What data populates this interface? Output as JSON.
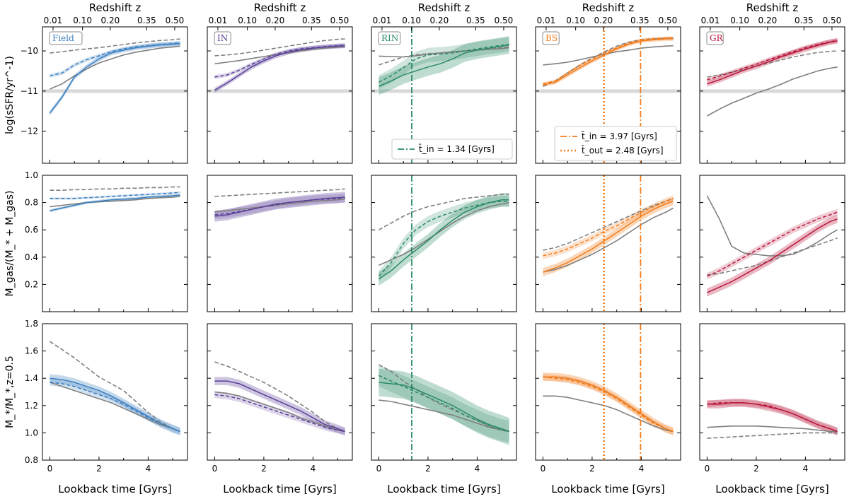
{
  "chart_data": {
    "type": "line",
    "figure_title": "",
    "redshift_axis_label": "Redshift z",
    "redshift_ticks": [
      "0.01",
      "0.10",
      "0.20",
      "0.35",
      "0.50"
    ],
    "redshift_tick_times": [
      0.13,
      1.33,
      2.46,
      3.94,
      5.08
    ],
    "xlabel": "Lookback time [Gyrs]",
    "xlim": [
      -0.3,
      5.6
    ],
    "xticks": [
      0,
      2,
      4
    ],
    "xtick_labels": [
      "0",
      "2",
      "4"
    ],
    "rows": [
      {
        "key": "ssfr",
        "ylabel": "log(sSFR/yr^-1)",
        "ylim": [
          -12.8,
          -9.4
        ],
        "yticks": [
          -12,
          -11,
          -10
        ],
        "ytick_labels": [
          "−12",
          "−11",
          "−10"
        ],
        "hline": -11
      },
      {
        "key": "mgas",
        "ylabel": "M_gas/(M_* + M_gas)",
        "ylim": [
          0.0,
          1.0
        ],
        "yticks": [
          0.2,
          0.4,
          0.6,
          0.8,
          1.0
        ],
        "ytick_labels": [
          "0.2",
          "0.4",
          "0.6",
          "0.8",
          "1.0"
        ]
      },
      {
        "key": "mstar",
        "ylabel": "M_*/M_*,z=0.5",
        "ylim": [
          0.8,
          1.8
        ],
        "yticks": [
          0.8,
          1.0,
          1.2,
          1.4,
          1.6,
          1.8
        ],
        "ytick_labels": [
          "0.8",
          "1.0",
          "1.2",
          "1.4",
          "1.6",
          "1.8"
        ]
      }
    ],
    "x": [
      0,
      0.5,
      1,
      1.5,
      2,
      2.5,
      3,
      3.5,
      4,
      4.5,
      5,
      5.3
    ],
    "panels": [
      {
        "name": "Field",
        "color": "#3a7fc0",
        "ssfr": {
          "solid": [
            -11.55,
            -11.15,
            -10.65,
            -10.4,
            -10.2,
            -10.05,
            -9.98,
            -9.92,
            -9.88,
            -9.85,
            -9.83,
            -9.82
          ],
          "dashed": [
            -10.62,
            -10.55,
            -10.35,
            -10.22,
            -10.12,
            -10.02,
            -9.95,
            -9.9,
            -9.87,
            -9.84,
            -9.82,
            -9.8
          ],
          "gray_solid": [
            -10.95,
            -10.82,
            -10.62,
            -10.45,
            -10.3,
            -10.2,
            -10.1,
            -10.03,
            -9.98,
            -9.93,
            -9.9,
            -9.88
          ],
          "gray_dashed": [
            -10.05,
            -10.02,
            -9.98,
            -9.95,
            -9.92,
            -9.88,
            -9.84,
            -9.8,
            -9.77,
            -9.74,
            -9.72,
            -9.7
          ],
          "band": 0.06
        },
        "mgas": {
          "solid": [
            0.74,
            0.76,
            0.78,
            0.8,
            0.81,
            0.82,
            0.825,
            0.83,
            0.84,
            0.845,
            0.85,
            0.855
          ],
          "dashed": [
            0.83,
            0.83,
            0.83,
            0.835,
            0.84,
            0.845,
            0.85,
            0.855,
            0.86,
            0.865,
            0.87,
            0.875
          ],
          "gray_solid": [
            0.77,
            0.78,
            0.79,
            0.8,
            0.805,
            0.81,
            0.815,
            0.82,
            0.83,
            0.835,
            0.84,
            0.845
          ],
          "gray_dashed": [
            0.89,
            0.89,
            0.895,
            0.895,
            0.9,
            0.9,
            0.905,
            0.905,
            0.91,
            0.91,
            0.915,
            0.915
          ],
          "band": 0.01
        },
        "mstar": {
          "solid": [
            1.4,
            1.39,
            1.37,
            1.34,
            1.31,
            1.27,
            1.22,
            1.17,
            1.12,
            1.07,
            1.03,
            1.01
          ],
          "dashed": [
            1.37,
            1.36,
            1.34,
            1.31,
            1.28,
            1.25,
            1.21,
            1.16,
            1.11,
            1.07,
            1.03,
            1.01
          ],
          "gray_solid": [
            1.37,
            1.34,
            1.31,
            1.28,
            1.25,
            1.22,
            1.18,
            1.14,
            1.1,
            1.06,
            1.03,
            1.01
          ],
          "gray_dashed": [
            1.67,
            1.61,
            1.55,
            1.48,
            1.41,
            1.36,
            1.31,
            1.23,
            1.15,
            1.08,
            1.03,
            1.01
          ],
          "band": 0.03
        }
      },
      {
        "name": "IN",
        "color": "#5a3f98",
        "ssfr": {
          "solid": [
            -10.98,
            -10.8,
            -10.6,
            -10.4,
            -10.25,
            -10.12,
            -10.03,
            -9.97,
            -9.93,
            -9.9,
            -9.88,
            -9.87
          ],
          "dashed": [
            -10.65,
            -10.6,
            -10.48,
            -10.33,
            -10.2,
            -10.08,
            -10.0,
            -9.95,
            -9.92,
            -9.89,
            -9.87,
            -9.86
          ],
          "gray_solid": [
            -10.32,
            -10.28,
            -10.24,
            -10.19,
            -10.14,
            -10.09,
            -10.05,
            -10.0,
            -9.96,
            -9.93,
            -9.91,
            -9.9
          ],
          "gray_dashed": [
            -10.12,
            -10.1,
            -10.07,
            -10.03,
            -9.98,
            -9.93,
            -9.88,
            -9.83,
            -9.78,
            -9.74,
            -9.71,
            -9.7
          ],
          "band": 0.06
        },
        "mgas": {
          "solid": [
            0.7,
            0.71,
            0.73,
            0.75,
            0.77,
            0.79,
            0.8,
            0.81,
            0.82,
            0.83,
            0.835,
            0.84
          ],
          "dashed": [
            0.71,
            0.72,
            0.735,
            0.75,
            0.77,
            0.785,
            0.8,
            0.81,
            0.82,
            0.825,
            0.83,
            0.835
          ],
          "gray_solid": [
            0.73,
            0.74,
            0.75,
            0.76,
            0.77,
            0.78,
            0.79,
            0.8,
            0.81,
            0.815,
            0.82,
            0.825
          ],
          "gray_dashed": [
            0.845,
            0.85,
            0.855,
            0.86,
            0.865,
            0.87,
            0.875,
            0.88,
            0.885,
            0.89,
            0.895,
            0.9
          ],
          "band": 0.04
        },
        "mstar": {
          "solid": [
            1.38,
            1.38,
            1.36,
            1.32,
            1.28,
            1.24,
            1.2,
            1.16,
            1.11,
            1.06,
            1.03,
            1.01
          ],
          "dashed": [
            1.28,
            1.27,
            1.25,
            1.22,
            1.19,
            1.16,
            1.13,
            1.1,
            1.07,
            1.04,
            1.02,
            1.01
          ],
          "gray_solid": [
            1.3,
            1.29,
            1.27,
            1.24,
            1.21,
            1.18,
            1.15,
            1.11,
            1.08,
            1.05,
            1.02,
            1.01
          ],
          "gray_dashed": [
            1.52,
            1.49,
            1.45,
            1.41,
            1.37,
            1.32,
            1.27,
            1.21,
            1.15,
            1.08,
            1.03,
            1.01
          ],
          "band": 0.03
        }
      },
      {
        "name": "RIN",
        "color": "#2a8a64",
        "ssfr": {
          "solid": [
            -10.88,
            -10.75,
            -10.6,
            -10.5,
            -10.4,
            -10.32,
            -10.2,
            -10.05,
            -9.98,
            -9.93,
            -9.88,
            -9.85
          ],
          "dashed": [
            -10.78,
            -10.62,
            -10.42,
            -10.2,
            -10.1,
            -10.08,
            -10.05,
            -10.0,
            -9.95,
            -9.9,
            -9.86,
            -9.83
          ],
          "gray_solid": [
            -10.13,
            -10.14,
            -10.15,
            -10.12,
            -10.08,
            -10.05,
            -10.02,
            -10.0,
            -9.98,
            -9.96,
            -9.94,
            -9.92
          ],
          "gray_dashed": [
            -10.35,
            -10.25,
            -10.15,
            -10.1,
            -10.07,
            -10.05,
            -10.03,
            -10.0,
            -9.98,
            -9.95,
            -9.92,
            -9.9
          ],
          "band": 0.22
        },
        "mgas": {
          "solid": [
            0.24,
            0.3,
            0.38,
            0.45,
            0.52,
            0.6,
            0.67,
            0.73,
            0.77,
            0.8,
            0.82,
            0.82
          ],
          "dashed": [
            0.26,
            0.36,
            0.5,
            0.6,
            0.66,
            0.7,
            0.73,
            0.76,
            0.78,
            0.8,
            0.81,
            0.81
          ],
          "gray_solid": [
            0.34,
            0.38,
            0.42,
            0.47,
            0.53,
            0.59,
            0.65,
            0.7,
            0.74,
            0.77,
            0.79,
            0.8
          ],
          "gray_dashed": [
            0.6,
            0.65,
            0.7,
            0.74,
            0.77,
            0.79,
            0.81,
            0.83,
            0.84,
            0.85,
            0.86,
            0.86
          ],
          "band": 0.05
        },
        "mstar": {
          "solid": [
            1.37,
            1.36,
            1.35,
            1.32,
            1.28,
            1.24,
            1.2,
            1.15,
            1.1,
            1.06,
            1.03,
            1.01
          ],
          "dashed": [
            1.42,
            1.38,
            1.34,
            1.3,
            1.26,
            1.22,
            1.18,
            1.13,
            1.09,
            1.05,
            1.02,
            1.01
          ],
          "gray_solid": [
            1.24,
            1.23,
            1.21,
            1.19,
            1.17,
            1.15,
            1.13,
            1.1,
            1.07,
            1.04,
            1.02,
            1.01
          ],
          "gray_dashed": [
            1.5,
            1.45,
            1.38,
            1.32,
            1.26,
            1.21,
            1.17,
            1.13,
            1.09,
            1.05,
            1.02,
            1.01
          ],
          "band": 0.1
        },
        "vlines": [
          {
            "x": 1.34,
            "style": "dashdot"
          }
        ],
        "legend": [
          "t̄_in = 1.34 [Gyrs]"
        ]
      },
      {
        "name": "BS",
        "color": "#f37c1a",
        "ssfr": {
          "solid": [
            -10.85,
            -10.78,
            -10.6,
            -10.42,
            -10.25,
            -10.1,
            -9.95,
            -9.83,
            -9.75,
            -9.72,
            -9.7,
            -9.7
          ],
          "dashed": [
            -10.82,
            -10.75,
            -10.55,
            -10.36,
            -10.2,
            -10.05,
            -9.92,
            -9.8,
            -9.73,
            -9.7,
            -9.68,
            -9.67
          ],
          "gray_solid": [
            -10.35,
            -10.32,
            -10.28,
            -10.22,
            -10.15,
            -10.08,
            -10.02,
            -9.98,
            -9.93,
            -9.9,
            -9.88,
            -9.87
          ],
          "gray_dashed": [
            -10.88,
            -10.75,
            -10.55,
            -10.35,
            -10.18,
            -10.02,
            -9.88,
            -9.78,
            -9.72,
            -9.7,
            -9.69,
            -9.68
          ],
          "band": 0.05
        },
        "mgas": {
          "solid": [
            0.29,
            0.32,
            0.36,
            0.41,
            0.46,
            0.52,
            0.58,
            0.64,
            0.7,
            0.75,
            0.79,
            0.81
          ],
          "dashed": [
            0.41,
            0.43,
            0.46,
            0.5,
            0.54,
            0.59,
            0.63,
            0.68,
            0.73,
            0.77,
            0.81,
            0.83
          ],
          "gray_solid": [
            0.29,
            0.31,
            0.34,
            0.38,
            0.42,
            0.47,
            0.52,
            0.58,
            0.64,
            0.69,
            0.73,
            0.76
          ],
          "gray_dashed": [
            0.45,
            0.47,
            0.5,
            0.54,
            0.58,
            0.62,
            0.66,
            0.7,
            0.74,
            0.78,
            0.81,
            0.83
          ],
          "band": 0.03
        },
        "mstar": {
          "solid": [
            1.41,
            1.41,
            1.4,
            1.38,
            1.35,
            1.31,
            1.26,
            1.2,
            1.14,
            1.08,
            1.03,
            1.01
          ],
          "dashed": [
            1.41,
            1.4,
            1.39,
            1.37,
            1.34,
            1.3,
            1.25,
            1.19,
            1.13,
            1.07,
            1.03,
            1.01
          ],
          "gray_solid": [
            1.27,
            1.27,
            1.26,
            1.24,
            1.22,
            1.2,
            1.17,
            1.13,
            1.09,
            1.05,
            1.02,
            1.01
          ],
          "gray_dashed": [
            1.41,
            1.41,
            1.4,
            1.38,
            1.35,
            1.31,
            1.26,
            1.2,
            1.14,
            1.08,
            1.03,
            1.01
          ],
          "band": 0.03
        },
        "vlines": [
          {
            "x": 3.97,
            "style": "dashdot"
          },
          {
            "x": 2.48,
            "style": "dotted"
          }
        ],
        "legend": [
          "t̄_in = 3.97 [Gyrs]",
          "t̄_out = 2.48 [Gyrs]"
        ]
      },
      {
        "name": "GR",
        "color": "#b8163a",
        "ssfr": {
          "solid": [
            -10.82,
            -10.72,
            -10.6,
            -10.48,
            -10.38,
            -10.27,
            -10.15,
            -10.05,
            -9.95,
            -9.86,
            -9.78,
            -9.75
          ],
          "dashed": [
            -10.72,
            -10.63,
            -10.53,
            -10.43,
            -10.33,
            -10.22,
            -10.12,
            -10.02,
            -9.92,
            -9.84,
            -9.77,
            -9.74
          ],
          "gray_solid": [
            -11.62,
            -11.45,
            -11.3,
            -11.18,
            -11.05,
            -10.95,
            -10.83,
            -10.7,
            -10.6,
            -10.5,
            -10.43,
            -10.4
          ],
          "gray_dashed": [
            -10.65,
            -10.6,
            -10.53,
            -10.46,
            -10.38,
            -10.3,
            -10.23,
            -10.15,
            -10.09,
            -10.04,
            -10.01,
            -10.0
          ],
          "band": 0.07
        },
        "mgas": {
          "solid": [
            0.14,
            0.18,
            0.22,
            0.27,
            0.32,
            0.37,
            0.43,
            0.49,
            0.55,
            0.61,
            0.66,
            0.68
          ],
          "dashed": [
            0.26,
            0.3,
            0.35,
            0.4,
            0.45,
            0.5,
            0.55,
            0.6,
            0.64,
            0.68,
            0.71,
            0.73
          ],
          "gray_solid": [
            0.85,
            0.68,
            0.48,
            0.43,
            0.42,
            0.41,
            0.41,
            0.42,
            0.46,
            0.51,
            0.57,
            0.6
          ],
          "gray_dashed": [
            0.27,
            0.28,
            0.3,
            0.32,
            0.34,
            0.37,
            0.4,
            0.43,
            0.46,
            0.49,
            0.52,
            0.54
          ],
          "band": 0.03
        },
        "mstar": {
          "solid": [
            1.21,
            1.21,
            1.22,
            1.22,
            1.21,
            1.19,
            1.17,
            1.14,
            1.1,
            1.06,
            1.03,
            1.01
          ],
          "dashed": [
            1.21,
            1.22,
            1.22,
            1.22,
            1.21,
            1.2,
            1.17,
            1.14,
            1.1,
            1.06,
            1.03,
            1.01
          ],
          "gray_solid": [
            1.04,
            1.045,
            1.05,
            1.05,
            1.05,
            1.045,
            1.04,
            1.035,
            1.03,
            1.02,
            1.01,
            1.01
          ],
          "gray_dashed": [
            0.96,
            0.965,
            0.97,
            0.975,
            0.98,
            0.985,
            0.99,
            0.995,
            1.0,
            1.0,
            1.0,
            1.0
          ],
          "band": 0.03
        }
      }
    ]
  }
}
